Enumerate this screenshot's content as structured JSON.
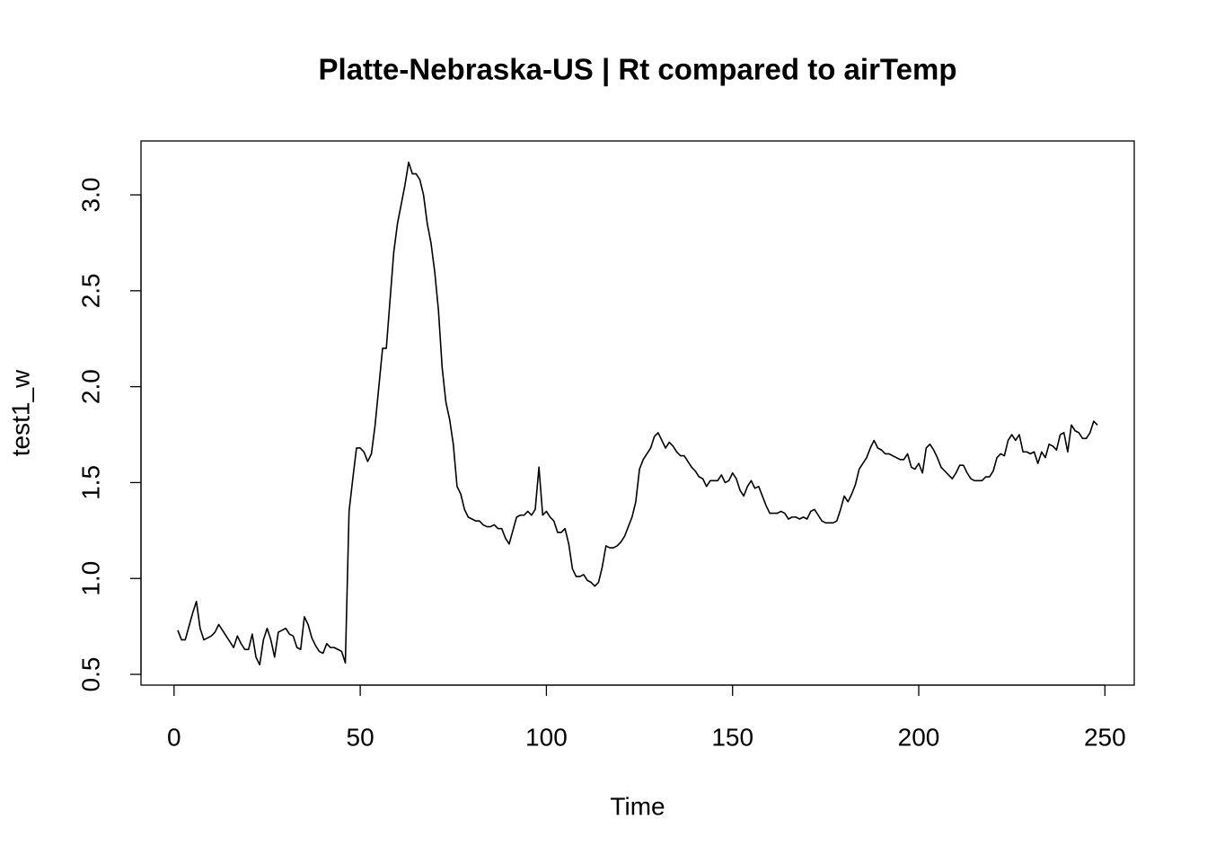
{
  "chart_data": {
    "type": "line",
    "title": "Platte-Nebraska-US | Rt compared to airTemp",
    "xlabel": "Time",
    "ylabel": "test1_w",
    "x": [
      1,
      2,
      3,
      4,
      5,
      6,
      7,
      8,
      9,
      10,
      11,
      12,
      13,
      14,
      15,
      16,
      17,
      18,
      19,
      20,
      21,
      22,
      23,
      24,
      25,
      26,
      27,
      28,
      29,
      30,
      31,
      32,
      33,
      34,
      35,
      36,
      37,
      38,
      39,
      40,
      41,
      42,
      43,
      44,
      45,
      46,
      47,
      48,
      49,
      50,
      51,
      52,
      53,
      54,
      55,
      56,
      57,
      58,
      59,
      60,
      61,
      62,
      63,
      64,
      65,
      66,
      67,
      68,
      69,
      70,
      71,
      72,
      73,
      74,
      75,
      76,
      77,
      78,
      79,
      80,
      81,
      82,
      83,
      84,
      85,
      86,
      87,
      88,
      89,
      90,
      91,
      92,
      93,
      94,
      95,
      96,
      97,
      98,
      99,
      100,
      101,
      102,
      103,
      104,
      105,
      106,
      107,
      108,
      109,
      110,
      111,
      112,
      113,
      114,
      115,
      116,
      117,
      118,
      119,
      120,
      121,
      122,
      123,
      124,
      125,
      126,
      127,
      128,
      129,
      130,
      131,
      132,
      133,
      134,
      135,
      136,
      137,
      138,
      139,
      140,
      141,
      142,
      143,
      144,
      145,
      146,
      147,
      148,
      149,
      150,
      151,
      152,
      153,
      154,
      155,
      156,
      157,
      158,
      159,
      160,
      161,
      162,
      163,
      164,
      165,
      166,
      167,
      168,
      169,
      170,
      171,
      172,
      173,
      174,
      175,
      176,
      177,
      178,
      179,
      180,
      181,
      182,
      183,
      184,
      185,
      186,
      187,
      188,
      189,
      190,
      191,
      192,
      193,
      194,
      195,
      196,
      197,
      198,
      199,
      200,
      201,
      202,
      203,
      204,
      205,
      206,
      207,
      208,
      209,
      210,
      211,
      212,
      213,
      214,
      215,
      216,
      217,
      218,
      219,
      220,
      221,
      222,
      223,
      224,
      225,
      226,
      227,
      228,
      229,
      230,
      231,
      232,
      233,
      234,
      235,
      236,
      237,
      238,
      239,
      240,
      241,
      242,
      243,
      244,
      245,
      246,
      247,
      248
    ],
    "series": [
      {
        "color": "#000000",
        "values": [
          0.73,
          0.68,
          0.68,
          0.75,
          0.82,
          0.88,
          0.74,
          0.68,
          0.69,
          0.7,
          0.72,
          0.76,
          0.73,
          0.7,
          0.67,
          0.64,
          0.7,
          0.66,
          0.63,
          0.63,
          0.71,
          0.59,
          0.55,
          0.68,
          0.74,
          0.68,
          0.59,
          0.72,
          0.73,
          0.74,
          0.71,
          0.7,
          0.64,
          0.63,
          0.8,
          0.76,
          0.69,
          0.65,
          0.62,
          0.61,
          0.66,
          0.64,
          0.64,
          0.63,
          0.62,
          0.56,
          1.35,
          1.52,
          1.68,
          1.68,
          1.66,
          1.61,
          1.65,
          1.8,
          2.0,
          2.2,
          2.2,
          2.45,
          2.7,
          2.85,
          2.95,
          3.05,
          3.17,
          3.11,
          3.11,
          3.08,
          3.0,
          2.85,
          2.75,
          2.6,
          2.4,
          2.1,
          1.92,
          1.83,
          1.7,
          1.48,
          1.44,
          1.36,
          1.32,
          1.31,
          1.3,
          1.3,
          1.28,
          1.27,
          1.27,
          1.28,
          1.26,
          1.26,
          1.21,
          1.18,
          1.25,
          1.32,
          1.33,
          1.33,
          1.35,
          1.33,
          1.36,
          1.58,
          1.33,
          1.35,
          1.32,
          1.3,
          1.24,
          1.24,
          1.26,
          1.18,
          1.05,
          1.01,
          1.01,
          1.02,
          0.99,
          0.98,
          0.96,
          0.98,
          1.06,
          1.17,
          1.16,
          1.16,
          1.17,
          1.19,
          1.22,
          1.27,
          1.32,
          1.4,
          1.57,
          1.62,
          1.65,
          1.68,
          1.74,
          1.76,
          1.72,
          1.68,
          1.71,
          1.69,
          1.66,
          1.64,
          1.64,
          1.61,
          1.58,
          1.56,
          1.53,
          1.52,
          1.48,
          1.51,
          1.51,
          1.51,
          1.54,
          1.5,
          1.51,
          1.55,
          1.52,
          1.46,
          1.43,
          1.48,
          1.51,
          1.47,
          1.48,
          1.43,
          1.38,
          1.34,
          1.34,
          1.34,
          1.35,
          1.34,
          1.31,
          1.32,
          1.32,
          1.31,
          1.32,
          1.31,
          1.35,
          1.36,
          1.33,
          1.3,
          1.29,
          1.29,
          1.29,
          1.3,
          1.36,
          1.43,
          1.4,
          1.44,
          1.49,
          1.57,
          1.6,
          1.63,
          1.68,
          1.72,
          1.68,
          1.67,
          1.65,
          1.65,
          1.64,
          1.63,
          1.62,
          1.62,
          1.65,
          1.58,
          1.57,
          1.6,
          1.55,
          1.68,
          1.7,
          1.67,
          1.63,
          1.58,
          1.56,
          1.54,
          1.52,
          1.55,
          1.59,
          1.59,
          1.55,
          1.52,
          1.51,
          1.51,
          1.51,
          1.53,
          1.53,
          1.56,
          1.63,
          1.65,
          1.64,
          1.72,
          1.75,
          1.72,
          1.75,
          1.66,
          1.66,
          1.65,
          1.66,
          1.6,
          1.66,
          1.63,
          1.7,
          1.69,
          1.67,
          1.75,
          1.76,
          1.66,
          1.8,
          1.77,
          1.76,
          1.73,
          1.73,
          1.76,
          1.82,
          1.8
        ]
      }
    ],
    "xlim": [
      -8.88,
      257.88
    ],
    "xticks": [
      0,
      50,
      100,
      150,
      200,
      250
    ],
    "ylim": [
      0.444,
      3.281
    ],
    "yticks": [
      0.5,
      {
        "value": 1,
        "label": "1.0"
      },
      1.5,
      {
        "value": 2,
        "label": "2.0"
      },
      2.5,
      {
        "value": 3,
        "label": "3.0"
      }
    ]
  }
}
